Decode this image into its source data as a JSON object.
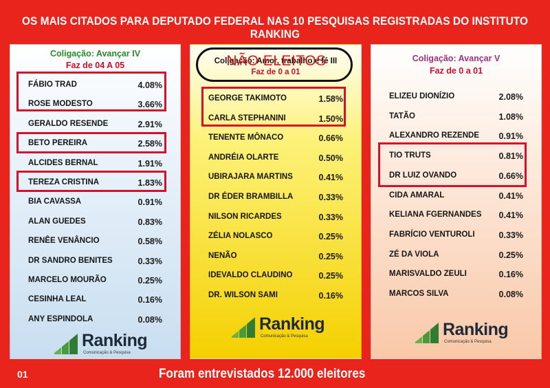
{
  "title": "OS MAIS CITADOS PARA DEPUTADO FEDERAL NAS 10 PESQUISAS REGISTRADAS DO INSTITUTO RANKING",
  "colors": {
    "background": "#e8241c",
    "highlight_box": "#d4102a",
    "header_green": "#2a8a2a",
    "header_red": "#c8102e",
    "header_purple": "#a0307a"
  },
  "panels": [
    {
      "coalition": "Coligação: Avançar IV",
      "range": "Faz de 04 A 05",
      "candidates": [
        {
          "name": "FÁBIO TRAD",
          "pct": "4.08%"
        },
        {
          "name": "ROSE MODESTO",
          "pct": "3.66%"
        },
        {
          "name": "GERALDO RESENDE",
          "pct": "2.91%"
        },
        {
          "name": "BETO PEREIRA",
          "pct": "2.58%"
        },
        {
          "name": "ALCIDES BERNAL",
          "pct": "1.91%"
        },
        {
          "name": "TEREZA  CRISTINA",
          "pct": "1.83%"
        },
        {
          "name": "BIA CAVASSA",
          "pct": "0.91%"
        },
        {
          "name": "ALAN GUEDES",
          "pct": "0.83%"
        },
        {
          "name": "RENÊE VENÂNCIO",
          "pct": "0.58%"
        },
        {
          "name": "DR SANDRO BENITES",
          "pct": "0.33%"
        },
        {
          "name": "MARCELO MOURÃO",
          "pct": "0.25%"
        },
        {
          "name": "CESINHA LEAL",
          "pct": "0.16%"
        },
        {
          "name": "ANY ESPINDOLA",
          "pct": "0.08%"
        }
      ]
    },
    {
      "coalition": "Coligação: Amor, trabalho e fé III",
      "range": "Faz de 0 a 01",
      "candidates": [
        {
          "name": "GEORGE TAKIMOTO",
          "pct": "1.58%"
        },
        {
          "name": "CARLA STEPHANINI",
          "pct": "1.50%"
        },
        {
          "name": "TENENTE  MÔNACO",
          "pct": "0.66%"
        },
        {
          "name": "ANDRÉIA OLARTE",
          "pct": "0.50%"
        },
        {
          "name": "UBIRAJARA MARTINS",
          "pct": "0.41%"
        },
        {
          "name": "DR ÉDER BRAMBILLA",
          "pct": "0.33%"
        },
        {
          "name": "NILSON RICARDES",
          "pct": "0.33%"
        },
        {
          "name": "ZÉLIA NOLASCO",
          "pct": "0.25%"
        },
        {
          "name": "NENÃO",
          "pct": "0.25%"
        },
        {
          "name": "IDEVALDO CLAUDINO",
          "pct": "0.25%"
        },
        {
          "name": "DR. WILSON SAMI",
          "pct": "0.16%"
        }
      ]
    },
    {
      "coalition": "Coligação: Avançar V",
      "range": "Faz de 0 a 01",
      "candidates": [
        {
          "name": "ELIZEU DIONÍZIO",
          "pct": "2.08%"
        },
        {
          "name": "TATÃO",
          "pct": "1.08%"
        },
        {
          "name": "ALEXANDRO REZENDE",
          "pct": "0.91%"
        },
        {
          "name": "TIO TRUTS",
          "pct": "0.81%"
        },
        {
          "name": "DR LUIZ OVANDO",
          "pct": "0.66%"
        },
        {
          "name": "CIDA AMARAL",
          "pct": "0.41%"
        },
        {
          "name": "KELIANA FGERNANDES",
          "pct": "0.41%"
        },
        {
          "name": "FABRÍCIO VENTUROLI",
          "pct": "0.33%"
        },
        {
          "name": "ZÉ DA VIOLA",
          "pct": "0.25%"
        },
        {
          "name": "MARISVALDO ZEULI",
          "pct": "0.16%"
        },
        {
          "name": "MARCOS SILVA",
          "pct": "0.08%"
        }
      ]
    }
  ],
  "overlay_label": "NÃO ELEITOS",
  "logo": {
    "name": "Ranking",
    "tagline": "Comunicação & Pesquisa",
    "icon": "bar-chart-logo-icon"
  },
  "footer": {
    "page_number": "01",
    "text": "Foram entrevistados 12.000 eleitores"
  }
}
